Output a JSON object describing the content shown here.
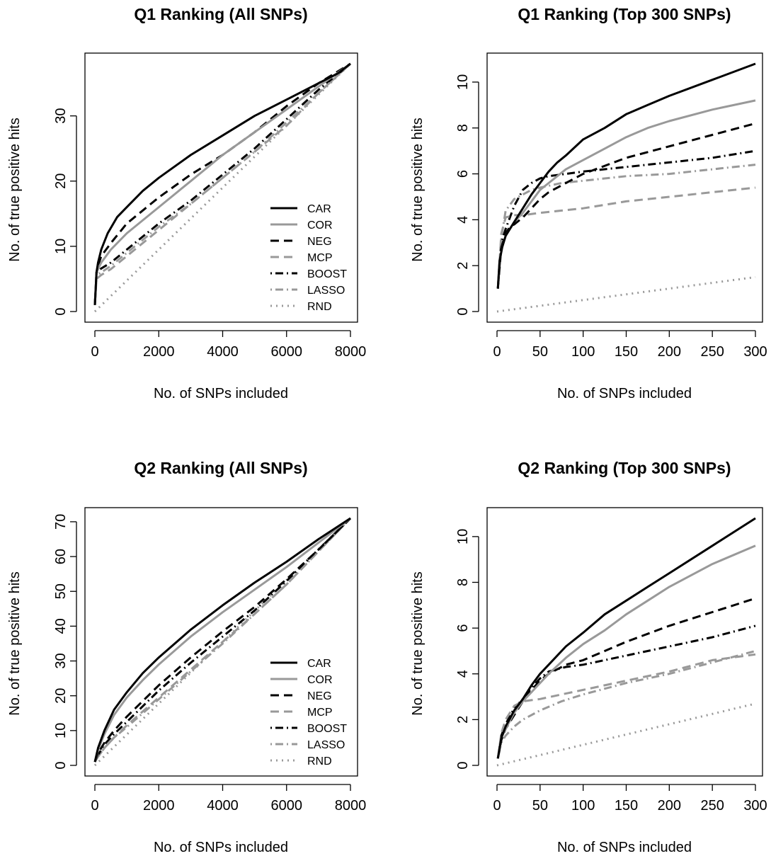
{
  "styles": {
    "CAR": {
      "color": "#000000",
      "dash": "",
      "width": 3
    },
    "COR": {
      "color": "#999999",
      "dash": "",
      "width": 3
    },
    "NEG": {
      "color": "#000000",
      "dash": "12,7",
      "width": 3
    },
    "MCP": {
      "color": "#999999",
      "dash": "12,7",
      "width": 3
    },
    "BOOST": {
      "color": "#000000",
      "dash": "2,5,11,5",
      "width": 3
    },
    "LASSO": {
      "color": "#999999",
      "dash": "2,5,11,5",
      "width": 3
    },
    "RND": {
      "color": "#999999",
      "dash": "2,6",
      "width": 3
    }
  },
  "chart_data": [
    {
      "type": "line",
      "title": "Q1 Ranking (All SNPs)",
      "xlabel": "No. of SNPs included",
      "ylabel": "No. of true positive hits",
      "xlim": [
        0,
        8000
      ],
      "ylim": [
        0,
        38
      ],
      "xticks": [
        0,
        2000,
        4000,
        6000,
        8000
      ],
      "yticks": [
        0,
        10,
        20,
        30
      ],
      "grid": false,
      "legend": "bottom-right",
      "legend_entries": [
        "CAR",
        "COR",
        "NEG",
        "MCP",
        "BOOST",
        "LASSO",
        "RND"
      ],
      "series": [
        {
          "name": "CAR",
          "x": [
            0,
            50,
            100,
            200,
            400,
            700,
            1000,
            1500,
            2000,
            3000,
            4000,
            5000,
            6000,
            7000,
            7600,
            8000
          ],
          "y": [
            1,
            6,
            7.5,
            9.5,
            12,
            14.5,
            16,
            18.5,
            20.5,
            24,
            27,
            30,
            32.5,
            35,
            36.5,
            38
          ]
        },
        {
          "name": "COR",
          "x": [
            0,
            50,
            100,
            200,
            500,
            1000,
            2000,
            3000,
            4000,
            5000,
            6000,
            7000,
            8000
          ],
          "y": [
            1,
            6,
            6.5,
            7.5,
            9.5,
            12,
            16,
            20,
            24,
            27.5,
            31,
            34.5,
            38
          ]
        },
        {
          "name": "NEG",
          "x": [
            0,
            50,
            100,
            200,
            500,
            1000,
            2000,
            3000,
            4000,
            5000,
            6000,
            7000,
            8000
          ],
          "y": [
            1,
            6,
            7,
            8.5,
            10.5,
            13.5,
            17.5,
            21,
            24,
            27.5,
            31.5,
            35,
            38
          ]
        },
        {
          "name": "MCP",
          "x": [
            0,
            50,
            100,
            200,
            500,
            1000,
            2000,
            3000,
            4000,
            5000,
            6000,
            7000,
            8000
          ],
          "y": [
            1,
            5,
            5.2,
            5.6,
            6.5,
            8.5,
            12.5,
            16.5,
            20.5,
            24.5,
            28.5,
            33.5,
            38
          ]
        },
        {
          "name": "BOOST",
          "x": [
            0,
            50,
            100,
            200,
            500,
            1000,
            2000,
            3000,
            4000,
            5000,
            6000,
            7000,
            8000
          ],
          "y": [
            1,
            6,
            6.2,
            6.6,
            7.5,
            9.5,
            13.5,
            17,
            21,
            25,
            29.5,
            34,
            38
          ]
        },
        {
          "name": "LASSO",
          "x": [
            0,
            50,
            100,
            200,
            500,
            1000,
            2000,
            3000,
            4000,
            5000,
            6000,
            7000,
            8000
          ],
          "y": [
            1,
            5.5,
            5.7,
            6,
            7,
            9,
            13,
            16.5,
            20.5,
            24.5,
            29,
            33.5,
            38
          ]
        },
        {
          "name": "RND",
          "x": [
            0,
            8000
          ],
          "y": [
            0,
            38
          ]
        }
      ]
    },
    {
      "type": "line",
      "title": "Q1 Ranking (Top 300 SNPs)",
      "xlabel": "No. of SNPs included",
      "ylabel": "No. of true positive hits",
      "xlim": [
        0,
        300
      ],
      "ylim": [
        0,
        10.8
      ],
      "xticks": [
        0,
        50,
        100,
        150,
        200,
        250,
        300
      ],
      "yticks": [
        0,
        2,
        4,
        6,
        8,
        10
      ],
      "grid": false,
      "series": [
        {
          "name": "CAR",
          "x": [
            1,
            3,
            6,
            10,
            20,
            30,
            40,
            50,
            60,
            70,
            80,
            100,
            125,
            150,
            175,
            200,
            250,
            300
          ],
          "y": [
            1,
            2.2,
            2.8,
            3.3,
            3.9,
            4.5,
            5.1,
            5.6,
            6.1,
            6.5,
            6.8,
            7.5,
            8.0,
            8.6,
            9.0,
            9.4,
            10.1,
            10.8
          ]
        },
        {
          "name": "COR",
          "x": [
            1,
            3,
            6,
            10,
            20,
            30,
            40,
            50,
            60,
            80,
            100,
            125,
            150,
            175,
            200,
            250,
            300
          ],
          "y": [
            1,
            2.2,
            2.8,
            3.3,
            3.9,
            4.3,
            4.8,
            5.3,
            5.6,
            6.2,
            6.6,
            7.1,
            7.6,
            8.0,
            8.3,
            8.8,
            9.2
          ]
        },
        {
          "name": "NEG",
          "x": [
            1,
            5,
            10,
            15,
            20,
            30,
            40,
            50,
            60,
            80,
            100,
            150,
            200,
            250,
            300
          ],
          "y": [
            1,
            2.8,
            3.4,
            3.7,
            3.8,
            4.1,
            4.5,
            4.9,
            5.2,
            5.6,
            6.0,
            6.7,
            7.2,
            7.7,
            8.2
          ]
        },
        {
          "name": "MCP",
          "x": [
            1,
            5,
            10,
            15,
            20,
            30,
            50,
            75,
            100,
            150,
            200,
            250,
            300
          ],
          "y": [
            1,
            3.4,
            4.1,
            4.15,
            4.2,
            4.2,
            4.3,
            4.4,
            4.5,
            4.8,
            5.0,
            5.2,
            5.4
          ]
        },
        {
          "name": "BOOST",
          "x": [
            1,
            5,
            10,
            20,
            30,
            40,
            50,
            60,
            80,
            100,
            150,
            200,
            250,
            300
          ],
          "y": [
            1,
            3.0,
            3.6,
            4.6,
            5.3,
            5.6,
            5.8,
            5.9,
            6.0,
            6.1,
            6.3,
            6.5,
            6.7,
            7.0
          ]
        },
        {
          "name": "LASSO",
          "x": [
            1,
            5,
            10,
            20,
            30,
            40,
            50,
            75,
            100,
            150,
            200,
            250,
            300
          ],
          "y": [
            1,
            3.2,
            4.4,
            4.9,
            5.1,
            5.3,
            5.4,
            5.6,
            5.7,
            5.9,
            6.0,
            6.2,
            6.4
          ]
        },
        {
          "name": "RND",
          "x": [
            0,
            300
          ],
          "y": [
            0,
            1.5
          ]
        }
      ]
    },
    {
      "type": "line",
      "title": "Q2 Ranking (All SNPs)",
      "xlabel": "No. of SNPs included",
      "ylabel": "No. of true positive hits",
      "xlim": [
        0,
        8000
      ],
      "ylim": [
        0,
        71
      ],
      "xticks": [
        0,
        2000,
        4000,
        6000,
        8000
      ],
      "yticks": [
        0,
        10,
        20,
        30,
        40,
        50,
        60,
        70
      ],
      "grid": false,
      "legend": "bottom-right",
      "legend_entries": [
        "CAR",
        "COR",
        "NEG",
        "MCP",
        "BOOST",
        "LASSO",
        "RND"
      ],
      "series": [
        {
          "name": "CAR",
          "x": [
            0,
            100,
            300,
            600,
            1000,
            1500,
            2000,
            3000,
            4000,
            5000,
            6000,
            7000,
            8000
          ],
          "y": [
            1,
            5,
            10,
            16,
            21,
            26.5,
            31,
            39,
            46,
            52.5,
            58.5,
            65,
            71
          ]
        },
        {
          "name": "COR",
          "x": [
            0,
            100,
            300,
            600,
            1000,
            1500,
            2000,
            3000,
            4000,
            5000,
            6000,
            7000,
            8000
          ],
          "y": [
            1,
            4.5,
            9,
            14.5,
            19.5,
            24.5,
            29,
            37,
            44,
            50.5,
            57,
            64,
            71
          ]
        },
        {
          "name": "NEG",
          "x": [
            0,
            100,
            300,
            600,
            1000,
            1500,
            2000,
            3000,
            4000,
            5000,
            6000,
            7000,
            8000
          ],
          "y": [
            1,
            3.5,
            6.5,
            10,
            14,
            18.5,
            23,
            31,
            38.5,
            45.5,
            53.5,
            62,
            71
          ]
        },
        {
          "name": "MCP",
          "x": [
            0,
            100,
            300,
            600,
            1000,
            1500,
            2000,
            3000,
            4000,
            5000,
            6000,
            7000,
            8000
          ],
          "y": [
            1,
            2.5,
            5,
            8,
            11.5,
            15.5,
            19.5,
            27.5,
            35.5,
            43.5,
            52,
            61.5,
            71
          ]
        },
        {
          "name": "BOOST",
          "x": [
            0,
            100,
            300,
            600,
            1000,
            1500,
            2000,
            3000,
            4000,
            5000,
            6000,
            7000,
            8000
          ],
          "y": [
            1,
            3,
            6,
            9,
            12.5,
            17,
            21.5,
            29.5,
            37,
            44.5,
            53,
            62,
            71
          ]
        },
        {
          "name": "LASSO",
          "x": [
            0,
            100,
            300,
            600,
            1000,
            1500,
            2000,
            3000,
            4000,
            5000,
            6000,
            7000,
            8000
          ],
          "y": [
            1,
            2.5,
            5,
            8,
            11,
            15,
            19,
            27,
            35,
            43.5,
            52,
            61.5,
            71
          ]
        },
        {
          "name": "RND",
          "x": [
            0,
            8000
          ],
          "y": [
            0,
            71
          ]
        }
      ]
    },
    {
      "type": "line",
      "title": "Q2 Ranking (Top 300 SNPs)",
      "xlabel": "No. of SNPs included",
      "ylabel": "No. of true positive hits",
      "xlim": [
        0,
        300
      ],
      "ylim": [
        0,
        10.8
      ],
      "xticks": [
        0,
        50,
        100,
        150,
        200,
        250,
        300
      ],
      "yticks": [
        0,
        2,
        4,
        6,
        8,
        10
      ],
      "grid": false,
      "series": [
        {
          "name": "CAR",
          "x": [
            1,
            5,
            10,
            20,
            30,
            40,
            50,
            60,
            80,
            100,
            125,
            150,
            175,
            200,
            250,
            300
          ],
          "y": [
            0.3,
            1.2,
            1.7,
            2.4,
            2.9,
            3.5,
            4.0,
            4.4,
            5.2,
            5.8,
            6.6,
            7.2,
            7.8,
            8.4,
            9.6,
            10.8
          ]
        },
        {
          "name": "COR",
          "x": [
            1,
            5,
            10,
            20,
            30,
            40,
            50,
            60,
            80,
            100,
            125,
            150,
            175,
            200,
            250,
            300
          ],
          "y": [
            0.3,
            1.2,
            1.6,
            2.3,
            2.8,
            3.2,
            3.6,
            4.0,
            4.7,
            5.3,
            5.9,
            6.6,
            7.2,
            7.8,
            8.8,
            9.6
          ]
        },
        {
          "name": "NEG",
          "x": [
            1,
            5,
            10,
            20,
            30,
            40,
            50,
            60,
            80,
            100,
            150,
            200,
            250,
            300
          ],
          "y": [
            0.3,
            1.1,
            1.6,
            2.2,
            2.8,
            3.3,
            3.7,
            4.0,
            4.4,
            4.6,
            5.4,
            6.1,
            6.7,
            7.3
          ]
        },
        {
          "name": "MCP",
          "x": [
            1,
            5,
            10,
            20,
            30,
            40,
            50,
            75,
            100,
            150,
            200,
            250,
            300
          ],
          "y": [
            0.3,
            1.4,
            2.0,
            2.6,
            2.8,
            2.85,
            2.9,
            3.1,
            3.3,
            3.7,
            4.1,
            4.6,
            4.85
          ]
        },
        {
          "name": "BOOST",
          "x": [
            1,
            5,
            10,
            20,
            30,
            40,
            50,
            60,
            80,
            100,
            125,
            150,
            200,
            250,
            300
          ],
          "y": [
            0.3,
            1.3,
            1.8,
            2.5,
            2.9,
            3.4,
            3.8,
            4.1,
            4.3,
            4.4,
            4.6,
            4.8,
            5.2,
            5.6,
            6.1
          ]
        },
        {
          "name": "LASSO",
          "x": [
            1,
            5,
            10,
            20,
            30,
            40,
            50,
            75,
            100,
            150,
            200,
            250,
            300
          ],
          "y": [
            0.3,
            1.0,
            1.3,
            1.7,
            2.0,
            2.2,
            2.4,
            2.8,
            3.1,
            3.6,
            4.0,
            4.5,
            5.0
          ]
        },
        {
          "name": "RND",
          "x": [
            0,
            300
          ],
          "y": [
            0,
            2.7
          ]
        }
      ]
    }
  ]
}
